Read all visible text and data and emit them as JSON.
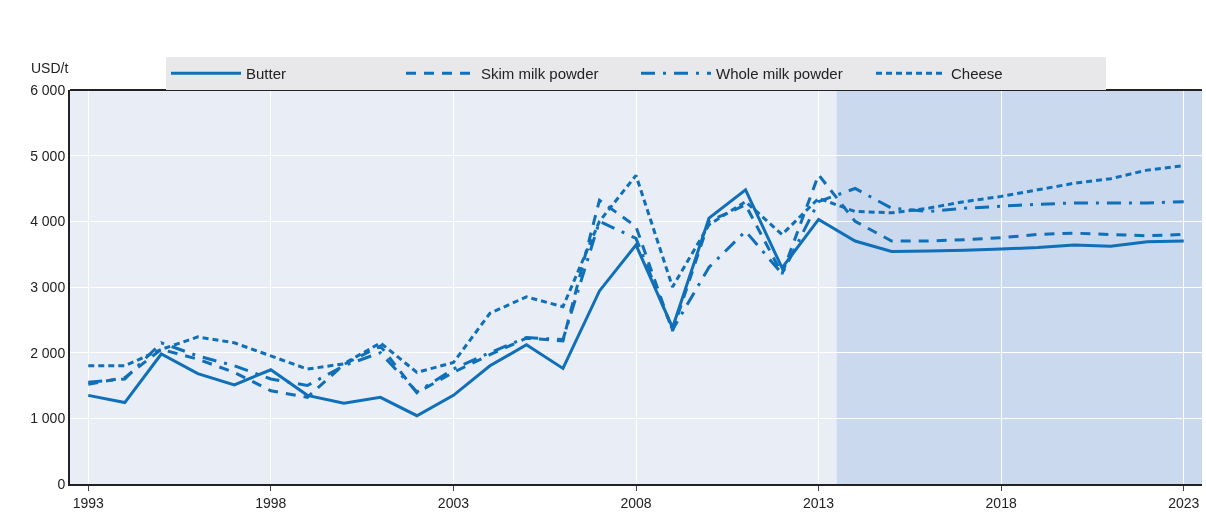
{
  "chart_data": {
    "type": "line",
    "ylabel": "USD/t",
    "legend": "top",
    "grid": true,
    "marker": "none",
    "x": [
      1993,
      1994,
      1995,
      1996,
      1997,
      1998,
      1999,
      2000,
      2001,
      2002,
      2003,
      2004,
      2005,
      2006,
      2007,
      2008,
      2009,
      2010,
      2011,
      2012,
      2013,
      2014,
      2015,
      2016,
      2017,
      2018,
      2019,
      2020,
      2021,
      2022,
      2023
    ],
    "xlim": [
      1992.5,
      2023.5
    ],
    "xticks": [
      1993,
      1998,
      2003,
      2008,
      2013,
      2018,
      2023
    ],
    "ylim": [
      0,
      6000
    ],
    "yticks": [
      0,
      {
        "value": 1000,
        "label": "1 000"
      },
      {
        "value": 2000,
        "label": "2 000"
      },
      {
        "value": 3000,
        "label": "3 000"
      },
      {
        "value": 4000,
        "label": "4 000"
      },
      {
        "value": 5000,
        "label": "5 000"
      },
      {
        "value": 6000,
        "label": "6 000"
      }
    ],
    "bands": [
      {
        "axis": "x",
        "from": 2013.5,
        "to": 2023.5,
        "color": "#c3d3ec"
      }
    ],
    "series": [
      {
        "name": "Butter",
        "color": "#0f6fb8",
        "line_style": "solid",
        "values": [
          1350,
          1240,
          1980,
          1680,
          1510,
          1740,
          1350,
          1230,
          1320,
          1040,
          1350,
          1800,
          2120,
          1760,
          2940,
          3640,
          2380,
          4050,
          4480,
          3290,
          4030,
          3700,
          3540,
          3550,
          3560,
          3580,
          3600,
          3640,
          3620,
          3690,
          3700
        ]
      },
      {
        "name": "Skim milk powder",
        "color": "#0f6fb8",
        "line_style": "dashed",
        "values": [
          1520,
          1620,
          2050,
          1900,
          1700,
          1420,
          1320,
          1820,
          2100,
          1390,
          1700,
          1970,
          2220,
          2180,
          4320,
          3920,
          2330,
          4000,
          4250,
          3200,
          4710,
          4000,
          3700,
          3700,
          3720,
          3750,
          3800,
          3820,
          3800,
          3780,
          3800
        ]
      },
      {
        "name": "Whole milk powder",
        "color": "#0f6fb8",
        "line_style": "dashdot",
        "values": [
          1550,
          1600,
          2150,
          1950,
          1800,
          1600,
          1500,
          1800,
          2000,
          1400,
          1750,
          2000,
          2230,
          2200,
          4000,
          3740,
          2350,
          3300,
          3850,
          3200,
          4300,
          4500,
          4200,
          4150,
          4200,
          4230,
          4260,
          4280,
          4280,
          4280,
          4300
        ]
      },
      {
        "name": "Cheese",
        "color": "#0f6fb8",
        "line_style": "dotted",
        "values": [
          1800,
          1800,
          2050,
          2240,
          2150,
          1950,
          1750,
          1830,
          2150,
          1700,
          1850,
          2600,
          2850,
          2700,
          4000,
          4700,
          3000,
          3950,
          4300,
          3800,
          4350,
          4150,
          4130,
          4200,
          4300,
          4380,
          4480,
          4580,
          4650,
          4780,
          4850
        ]
      }
    ]
  }
}
